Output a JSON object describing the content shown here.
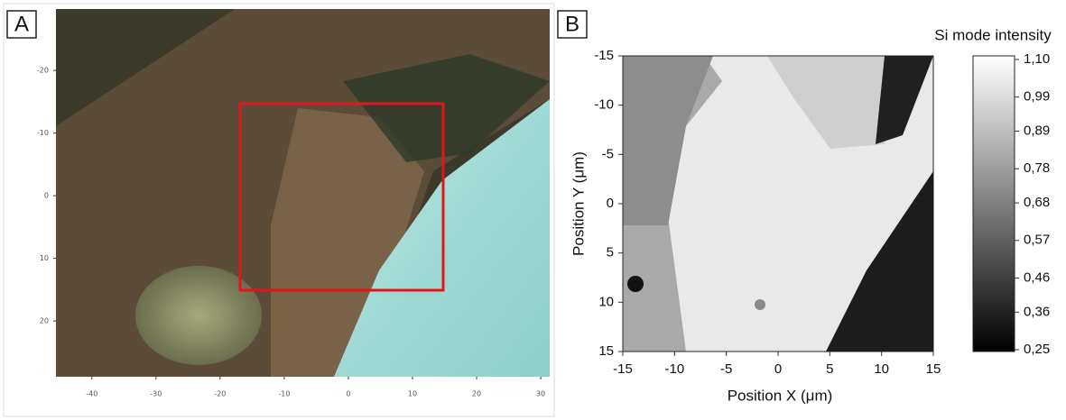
{
  "chart_data": [
    {
      "type": "optical-image",
      "panel_label": "A",
      "y_axis_inverted": true,
      "xlim": [
        -45.6,
        31.4
      ],
      "xticks": [
        -40,
        -30,
        -20,
        -10,
        0,
        10,
        20,
        30
      ],
      "ylim": [
        -29.8,
        28.9
      ],
      "yticks": [
        -20,
        -10,
        0,
        10,
        20
      ]
    },
    {
      "type": "intensity-map",
      "panel_label": "B",
      "y_axis_inverted": true,
      "xlabel": "Position X (μm)",
      "ylabel": "Position Y (μm)",
      "xlim": [
        -15,
        15
      ],
      "xticks": [
        -15,
        -10,
        -5,
        0,
        5,
        10,
        15
      ],
      "ylim": [
        -15,
        15
      ],
      "yticks": [
        -15,
        -10,
        -5,
        0,
        5,
        10,
        15
      ],
      "colorbar": {
        "title": "Si mode intensity",
        "lim": [
          0.25,
          1.1
        ],
        "ticks": [
          {
            "value": 1.1,
            "label": "1,10"
          },
          {
            "value": 0.99,
            "label": "0,99"
          },
          {
            "value": 0.89,
            "label": "0,89"
          },
          {
            "value": 0.78,
            "label": "0,78"
          },
          {
            "value": 0.68,
            "label": "0,68"
          },
          {
            "value": 0.57,
            "label": "0,57"
          },
          {
            "value": 0.46,
            "label": "0,46"
          },
          {
            "value": 0.36,
            "label": "0,36"
          },
          {
            "value": 0.25,
            "label": "0,25"
          }
        ]
      }
    }
  ]
}
